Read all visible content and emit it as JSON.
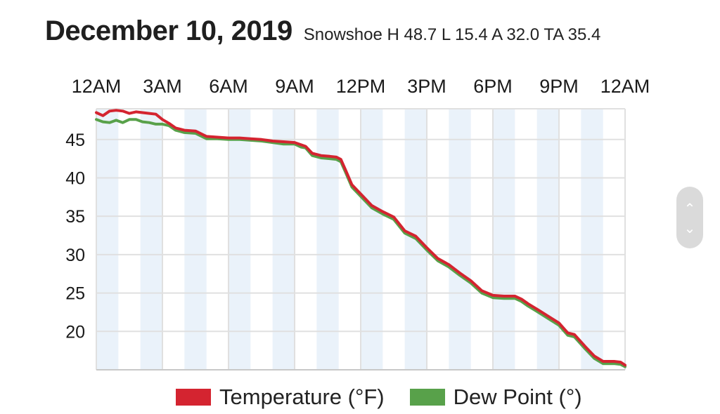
{
  "header": {
    "title": "December 10, 2019",
    "subtitle": "Snowshoe H 48.7 L 15.4 A 32.0 TA 35.4"
  },
  "colors": {
    "temperature": "#d42430",
    "dew_point": "#58a14a",
    "shaded_band": "#eaf2fa",
    "grid": "#e0e0e0"
  },
  "scroll": {
    "up_icon": "chevron-up-icon",
    "down_icon": "chevron-down-icon",
    "up_glyph": "⌃",
    "down_glyph": "⌄"
  },
  "chart_data": {
    "type": "line",
    "title": "December 10, 2019",
    "subtitle": "Snowshoe H 48.7 L 15.4 A 32.0 TA 35.4",
    "x_axis_position": "top",
    "x_unit": "hours since 12AM",
    "xlim": [
      0,
      24
    ],
    "x_ticks": [
      {
        "value": 0,
        "label": "12AM"
      },
      {
        "value": 3,
        "label": "3AM"
      },
      {
        "value": 6,
        "label": "6AM"
      },
      {
        "value": 9,
        "label": "9AM"
      },
      {
        "value": 12,
        "label": "12PM"
      },
      {
        "value": 15,
        "label": "3PM"
      },
      {
        "value": 18,
        "label": "6PM"
      },
      {
        "value": 21,
        "label": "9PM"
      },
      {
        "value": 24,
        "label": "12AM"
      }
    ],
    "y_ticks": [
      20,
      25,
      30,
      35,
      40,
      45
    ],
    "ylim": [
      15.0,
      49.0
    ],
    "grid": true,
    "shaded_hour_bands": [
      [
        0,
        1
      ],
      [
        2,
        3
      ],
      [
        4,
        5
      ],
      [
        6,
        7
      ],
      [
        8,
        9
      ],
      [
        10,
        11
      ],
      [
        12,
        13
      ],
      [
        14,
        15
      ],
      [
        16,
        17
      ],
      [
        18,
        19
      ],
      [
        20,
        21
      ],
      [
        22,
        23
      ]
    ],
    "legend_position": "bottom",
    "series": [
      {
        "name": "Temperature (°F)",
        "color": "#d42430",
        "x": [
          0,
          0.3,
          0.6,
          0.9,
          1.2,
          1.5,
          1.8,
          2.1,
          2.4,
          2.7,
          3.0,
          3.3,
          3.6,
          4.0,
          4.5,
          5.0,
          5.5,
          6.0,
          6.5,
          7.0,
          7.5,
          8.0,
          8.5,
          9.0,
          9.3,
          9.5,
          9.8,
          10.2,
          10.6,
          10.9,
          11.1,
          11.3,
          11.6,
          12.0,
          12.5,
          13.0,
          13.5,
          14.0,
          14.5,
          15.0,
          15.5,
          16.0,
          16.5,
          17.0,
          17.5,
          18.0,
          18.5,
          19.0,
          19.3,
          19.6,
          20.0,
          20.5,
          21.0,
          21.4,
          21.7,
          22.2,
          22.6,
          23.0,
          23.5,
          23.8,
          24.0
        ],
        "y": [
          48.5,
          48.1,
          48.7,
          48.8,
          48.7,
          48.4,
          48.6,
          48.5,
          48.4,
          48.3,
          47.6,
          47.1,
          46.5,
          46.2,
          46.1,
          45.4,
          45.3,
          45.2,
          45.2,
          45.1,
          45.0,
          44.8,
          44.7,
          44.6,
          44.3,
          44.1,
          43.2,
          42.9,
          42.8,
          42.7,
          42.4,
          41.1,
          39.1,
          37.9,
          36.4,
          35.6,
          34.9,
          33.1,
          32.4,
          30.9,
          29.5,
          28.7,
          27.6,
          26.6,
          25.3,
          24.7,
          24.6,
          24.6,
          24.2,
          23.6,
          22.9,
          22.0,
          21.1,
          19.8,
          19.6,
          18.0,
          16.8,
          16.1,
          16.1,
          16.0,
          15.6
        ]
      },
      {
        "name": "Dew Point (°)",
        "color": "#58a14a",
        "x": [
          0,
          0.3,
          0.6,
          0.9,
          1.2,
          1.5,
          1.8,
          2.1,
          2.4,
          2.7,
          3.0,
          3.3,
          3.6,
          4.0,
          4.5,
          5.0,
          5.5,
          6.0,
          6.5,
          7.0,
          7.5,
          8.0,
          8.5,
          9.0,
          9.3,
          9.5,
          9.8,
          10.2,
          10.6,
          10.9,
          11.1,
          11.3,
          11.6,
          12.0,
          12.5,
          13.0,
          13.5,
          14.0,
          14.5,
          15.0,
          15.5,
          16.0,
          16.5,
          17.0,
          17.5,
          18.0,
          18.5,
          19.0,
          19.3,
          19.6,
          20.0,
          20.5,
          21.0,
          21.4,
          21.7,
          22.2,
          22.6,
          23.0,
          23.5,
          23.8,
          24.0
        ],
        "y": [
          47.6,
          47.3,
          47.2,
          47.5,
          47.2,
          47.6,
          47.6,
          47.3,
          47.2,
          47.0,
          47.0,
          46.8,
          46.2,
          45.9,
          45.8,
          45.1,
          45.1,
          45.0,
          45.0,
          44.9,
          44.8,
          44.6,
          44.4,
          44.4,
          44.0,
          43.9,
          42.9,
          42.6,
          42.5,
          42.4,
          42.1,
          40.8,
          38.8,
          37.6,
          36.1,
          35.3,
          34.6,
          32.8,
          32.1,
          30.6,
          29.2,
          28.4,
          27.3,
          26.3,
          25.0,
          24.4,
          24.3,
          24.3,
          23.9,
          23.3,
          22.6,
          21.7,
          20.8,
          19.5,
          19.3,
          17.7,
          16.5,
          15.8,
          15.8,
          15.7,
          15.4
        ]
      }
    ]
  }
}
